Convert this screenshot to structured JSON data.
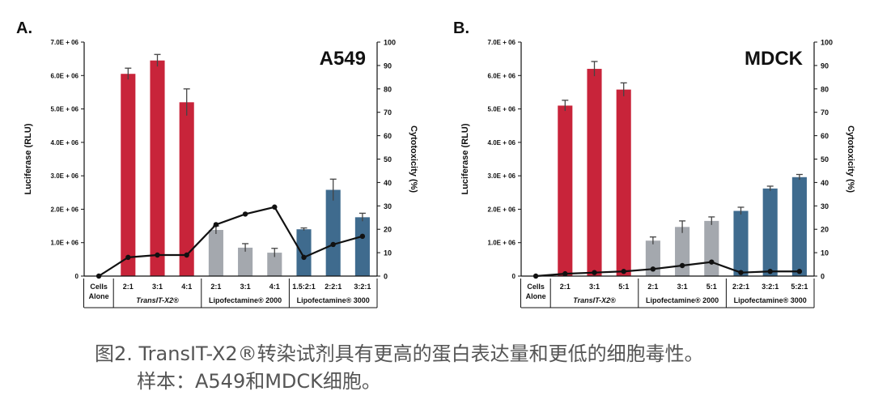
{
  "panels": [
    {
      "letter": "A."
    },
    {
      "letter": "B."
    }
  ],
  "caption": {
    "line1": "图2. TransIT-X2®转染试剂具有更高的蛋白表达量和更低的细胞毒性。",
    "line2": "样本：A549和MDCK细胞。"
  },
  "colors": {
    "transit": "#c8243a",
    "lipo2000": "#a4a8ae",
    "lipo3000": "#3f6b8e",
    "line": "#111111"
  },
  "chart_data": [
    {
      "type": "bar",
      "title": "A549",
      "ylabel": "Luciferase (RLU)",
      "y2label": "Cytotoxicity (%)",
      "ylim": [
        0,
        7000000
      ],
      "y2lim": [
        0,
        100
      ],
      "yticks": [
        "0",
        "1.0E + 06",
        "2.0E + 06",
        "3.0E + 06",
        "4.0E + 06",
        "5.0E + 06",
        "6.0E + 06",
        "7.0E + 06"
      ],
      "y2ticks": [
        "0",
        "10",
        "20",
        "30",
        "40",
        "50",
        "60",
        "70",
        "80",
        "90",
        "100"
      ],
      "groups": [
        "Cells Alone",
        "TransIT-X2®",
        "Lipofectamine® 2000",
        "Lipofectamine® 3000"
      ],
      "categories": [
        "",
        "2:1",
        "3:1",
        "4:1",
        "2:1",
        "3:1",
        "4:1",
        "1.5:2:1",
        "2:2:1",
        "3:2:1"
      ],
      "category_groups": [
        0,
        1,
        1,
        1,
        2,
        2,
        2,
        3,
        3,
        3
      ],
      "series": [
        {
          "values": [
            null,
            6050000,
            6450000,
            5200000,
            1380000,
            850000,
            700000,
            1400000,
            2580000,
            1760000
          ],
          "errors": [
            null,
            170000,
            180000,
            400000,
            120000,
            120000,
            130000,
            40000,
            320000,
            120000
          ]
        },
        {
          "type": "line",
          "axis": "right",
          "values": [
            0,
            8,
            9,
            9,
            22,
            26.5,
            29.5,
            8,
            13.5,
            17
          ]
        }
      ]
    },
    {
      "type": "bar",
      "title": "MDCK",
      "ylabel": "Luciferase (RLU)",
      "y2label": "Cytotoxicity (%)",
      "ylim": [
        0,
        7000000
      ],
      "y2lim": [
        0,
        100
      ],
      "yticks": [
        "0",
        "1.0E + 06",
        "2.0E + 06",
        "3.0E + 06",
        "4.0E + 06",
        "5.0E + 06",
        "6.0E + 06",
        "7.0E + 06"
      ],
      "y2ticks": [
        "0",
        "10",
        "20",
        "30",
        "40",
        "50",
        "60",
        "70",
        "80",
        "90",
        "100"
      ],
      "groups": [
        "Cells Alone",
        "TransIT-X2®",
        "Lipofectamine® 2000",
        "Lipofectamine® 3000"
      ],
      "categories": [
        "",
        "2:1",
        "3:1",
        "5:1",
        "2:1",
        "3:1",
        "5:1",
        "2:2:1",
        "3:2:1",
        "5:2:1"
      ],
      "category_groups": [
        0,
        1,
        1,
        1,
        2,
        2,
        2,
        3,
        3,
        3
      ],
      "series": [
        {
          "values": [
            null,
            5100000,
            6200000,
            5580000,
            1060000,
            1470000,
            1650000,
            1950000,
            2620000,
            2960000
          ],
          "errors": [
            null,
            160000,
            220000,
            200000,
            110000,
            180000,
            120000,
            110000,
            70000,
            80000
          ]
        },
        {
          "type": "line",
          "axis": "right",
          "values": [
            0,
            1,
            1.5,
            2,
            3,
            4.5,
            6,
            1.5,
            2,
            2
          ]
        }
      ]
    }
  ]
}
